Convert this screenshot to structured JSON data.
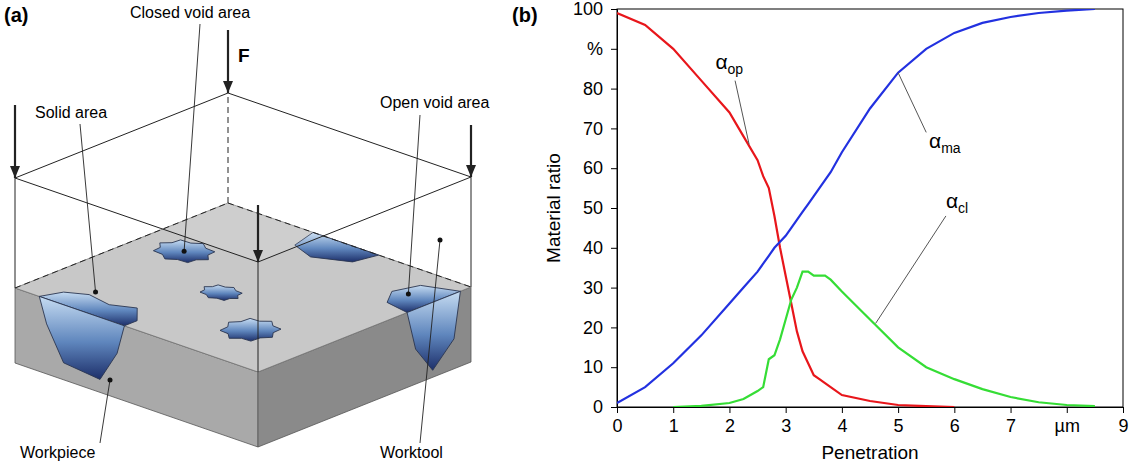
{
  "diagram": {
    "panel_label": "(a)",
    "force_label": "F",
    "labels": [
      "Closed void area",
      "Solid area",
      "Open void area",
      "Workpiece",
      "Worktool"
    ]
  },
  "chart_data": {
    "type": "line",
    "panel_label": "(b)",
    "x_label": "Penetration",
    "y_label": "Material ratio",
    "x": [
      0,
      0.5,
      1,
      1.5,
      2,
      2.25,
      2.5,
      2.6,
      2.7,
      2.8,
      2.9,
      3,
      3.1,
      3.2,
      3.3,
      3.4,
      3.5,
      3.6,
      3.7,
      3.8,
      4,
      4.5,
      5,
      5.5,
      6,
      6.5,
      7,
      7.5,
      8,
      8.5
    ],
    "series": [
      {
        "name": "αop",
        "color": "#e8161b",
        "values": [
          99,
          96,
          90,
          82,
          74,
          68,
          62,
          58,
          55,
          48,
          40,
          33,
          26,
          19,
          14,
          11,
          8,
          7,
          6,
          5,
          3,
          1.5,
          0.5,
          0.2,
          0,
          null,
          null,
          null,
          null,
          null
        ]
      },
      {
        "name": "αma",
        "color": "#2231e0",
        "values": [
          1,
          5,
          11,
          18,
          26,
          30,
          34,
          36,
          38,
          40,
          41.5,
          43,
          45,
          47,
          49,
          51,
          53,
          55,
          57,
          59,
          64,
          75,
          84,
          90,
          94,
          96.5,
          98,
          99,
          99.6,
          100
        ]
      },
      {
        "name": "αcl",
        "color": "#35dd35",
        "values": [
          null,
          null,
          0,
          0.3,
          1,
          2,
          4,
          5,
          12,
          13,
          17,
          22,
          27,
          30,
          34,
          34,
          33,
          33,
          33,
          32,
          29,
          22,
          15,
          10,
          7,
          4.5,
          2.5,
          1.2,
          0.5,
          0.2
        ]
      }
    ],
    "xlim": [
      0,
      9
    ],
    "ylim": [
      0,
      100
    ],
    "xticks": [
      0,
      1,
      2,
      3,
      4,
      5,
      6,
      7,
      {
        "value": 8,
        "label": "µm"
      },
      9
    ],
    "yticks": [
      0,
      10,
      20,
      30,
      40,
      50,
      60,
      70,
      80,
      {
        "value": 90,
        "label": "%"
      },
      100
    ],
    "grid": false
  }
}
